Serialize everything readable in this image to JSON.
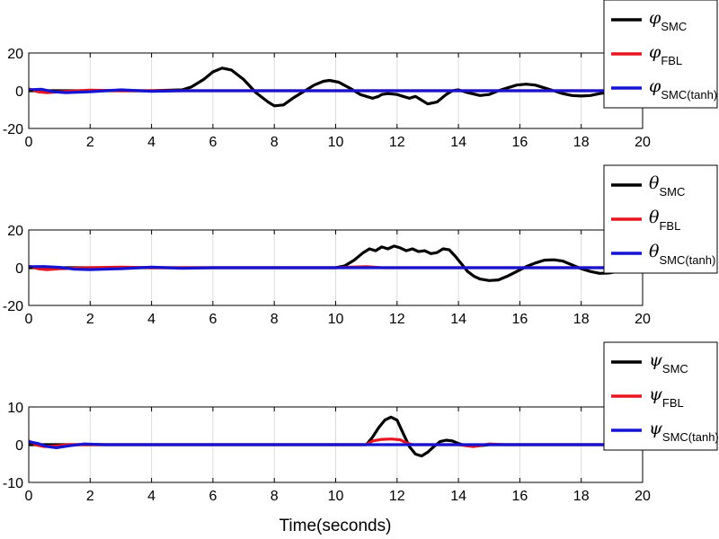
{
  "xlabel": "Time(seconds)",
  "chart_data": [
    {
      "type": "line",
      "xlim": [
        0,
        20
      ],
      "ylim": [
        -20,
        20
      ],
      "xticks": [
        0,
        2,
        4,
        6,
        8,
        10,
        12,
        14,
        16,
        18,
        20
      ],
      "yticks": [
        -20,
        0,
        20
      ],
      "grid": true,
      "legend_position": "top-right",
      "series": [
        {
          "name": "φ",
          "sub": "SMC",
          "color": "#000000",
          "x": [
            0,
            2,
            4,
            5,
            5.3,
            5.7,
            6.0,
            6.3,
            6.6,
            7.0,
            7.4,
            7.8,
            8.0,
            8.3,
            8.6,
            9.0,
            9.3,
            9.6,
            9.8,
            10.1,
            10.5,
            10.8,
            11.0,
            11.2,
            11.4,
            11.5,
            11.7,
            12.0,
            12.2,
            12.4,
            12.6,
            12.8,
            13.0,
            13.3,
            13.6,
            13.8,
            14.0,
            14.3,
            14.7,
            15.0,
            15.3,
            15.6,
            15.9,
            16.2,
            16.5,
            16.8,
            17.1,
            17.4,
            17.7,
            18.0,
            18.3,
            18.6,
            19.0,
            20
          ],
          "y": [
            0,
            0,
            0,
            0.5,
            2,
            6,
            10,
            12,
            11,
            6,
            -1,
            -6,
            -8,
            -7.5,
            -4,
            0,
            3,
            5,
            5.5,
            4.5,
            1,
            -2,
            -3,
            -4,
            -3,
            -2,
            -1.5,
            -2,
            -3,
            -4,
            -3,
            -5,
            -7,
            -6,
            -2,
            0,
            0.5,
            -1,
            -2.5,
            -2,
            0,
            1.5,
            3,
            3.5,
            3,
            1.5,
            0,
            -1.5,
            -2.5,
            -2.8,
            -2.5,
            -1.5,
            -0.5,
            0
          ]
        },
        {
          "name": "φ",
          "sub": "FBL",
          "color": "#e8141e",
          "x": [
            0,
            0.3,
            0.6,
            1,
            2,
            3,
            4,
            6,
            20
          ],
          "y": [
            1,
            -0.5,
            -1,
            -0.5,
            0.3,
            0,
            0,
            0,
            0
          ]
        },
        {
          "name": "φ",
          "sub": "SMC(tanh)",
          "color": "#1414d2",
          "x": [
            0,
            0.4,
            0.8,
            1.2,
            2,
            3,
            4,
            5,
            6,
            20
          ],
          "y": [
            0.5,
            0.8,
            -0.5,
            -1,
            -0.5,
            0.5,
            -0.3,
            0,
            0,
            0
          ]
        }
      ]
    },
    {
      "type": "line",
      "xlim": [
        0,
        20
      ],
      "ylim": [
        -20,
        20
      ],
      "xticks": [
        0,
        2,
        4,
        6,
        8,
        10,
        12,
        14,
        16,
        18,
        20
      ],
      "yticks": [
        -20,
        0,
        20
      ],
      "grid": true,
      "legend_position": "top-right",
      "series": [
        {
          "name": "θ",
          "sub": "SMC",
          "color": "#000000",
          "x": [
            0,
            5,
            9,
            10,
            10.3,
            10.6,
            10.9,
            11.1,
            11.3,
            11.5,
            11.7,
            11.9,
            12.1,
            12.3,
            12.5,
            12.7,
            12.9,
            13.1,
            13.3,
            13.5,
            13.7,
            13.9,
            14.1,
            14.3,
            14.5,
            14.7,
            15.0,
            15.3,
            15.6,
            15.9,
            16.2,
            16.5,
            16.8,
            17.1,
            17.4,
            17.7,
            18.0,
            18.3,
            18.6,
            18.9,
            19.2,
            19.5,
            20
          ],
          "y": [
            0,
            0,
            0,
            0,
            1,
            4,
            8,
            10,
            9,
            11,
            10,
            11.5,
            10.5,
            9,
            10,
            8.5,
            9,
            7.5,
            8,
            10,
            9.5,
            6,
            2,
            -2,
            -4.5,
            -6,
            -6.8,
            -6.5,
            -4.5,
            -2,
            0.5,
            2.5,
            4,
            4.2,
            3.5,
            1.5,
            -0.5,
            -2,
            -3,
            -2.8,
            -2,
            -1,
            0
          ]
        },
        {
          "name": "θ",
          "sub": "FBL",
          "color": "#e8141e",
          "x": [
            0,
            0.3,
            0.6,
            1,
            2,
            3,
            4,
            6,
            10,
            10.5,
            11,
            11.5,
            20
          ],
          "y": [
            0.8,
            -0.5,
            -1,
            -0.5,
            0,
            0.3,
            0,
            0,
            0,
            0.3,
            0.5,
            0,
            0
          ]
        },
        {
          "name": "θ",
          "sub": "SMC(tanh)",
          "color": "#1414d2",
          "x": [
            0,
            0.5,
            1,
            1.5,
            2,
            3,
            4,
            5,
            6,
            20
          ],
          "y": [
            0.5,
            0.6,
            0.2,
            -0.8,
            -1,
            -0.5,
            0.3,
            -0.3,
            0,
            0
          ]
        }
      ]
    },
    {
      "type": "line",
      "xlim": [
        0,
        20
      ],
      "ylim": [
        -10,
        10
      ],
      "xticks": [
        0,
        2,
        4,
        6,
        8,
        10,
        12,
        14,
        16,
        18,
        20
      ],
      "yticks": [
        -10,
        0,
        10
      ],
      "grid": true,
      "legend_position": "top-right",
      "series": [
        {
          "name": "ψ",
          "sub": "SMC",
          "color": "#000000",
          "x": [
            0,
            5,
            11,
            11.2,
            11.4,
            11.6,
            11.8,
            12.0,
            12.2,
            12.4,
            12.6,
            12.8,
            13.0,
            13.2,
            13.4,
            13.6,
            13.8,
            14.0,
            14.2,
            14.5,
            14.8,
            15.0,
            15.5,
            20
          ],
          "y": [
            0,
            0,
            0,
            2,
            4.5,
            6.5,
            7.3,
            6.5,
            3,
            -0.5,
            -2.5,
            -3,
            -2,
            -0.5,
            0.8,
            1.2,
            1,
            0.3,
            -0.2,
            -0.4,
            -0.2,
            0,
            0,
            0
          ]
        },
        {
          "name": "ψ",
          "sub": "FBL",
          "color": "#e8141e",
          "x": [
            0,
            0.2,
            0.5,
            0.9,
            1.3,
            2,
            3,
            11,
            11.2,
            11.5,
            11.8,
            12.1,
            12.3,
            12.5,
            13,
            14,
            14.5,
            15,
            15.5,
            20
          ],
          "y": [
            1,
            0,
            -0.5,
            -0.3,
            0,
            0,
            0,
            0,
            1,
            1.4,
            1.5,
            1.3,
            0.5,
            0,
            0,
            0,
            -0.5,
            0.2,
            0,
            0
          ]
        },
        {
          "name": "ψ",
          "sub": "SMC(tanh)",
          "color": "#1414d2",
          "x": [
            0,
            0.3,
            0.6,
            0.9,
            1.3,
            1.8,
            2.5,
            3.5,
            20
          ],
          "y": [
            0.8,
            0.3,
            -0.5,
            -0.8,
            -0.3,
            0.2,
            0,
            0,
            0
          ]
        }
      ]
    }
  ]
}
